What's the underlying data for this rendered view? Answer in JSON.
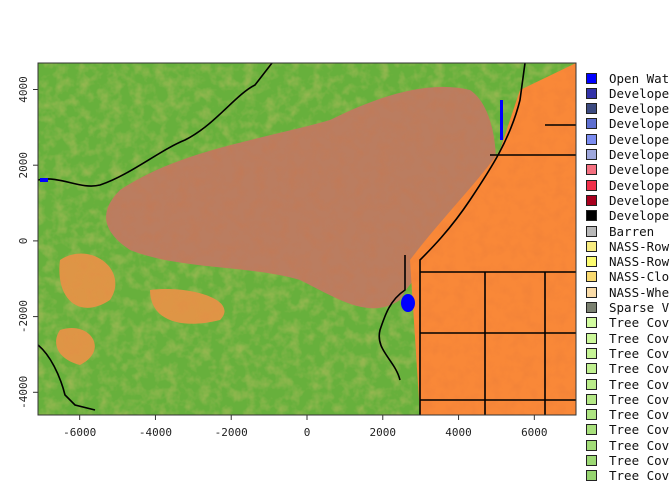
{
  "map": {
    "x_axis": {
      "ticks": [
        -6000,
        -4000,
        -2000,
        0,
        2000,
        4000,
        6000
      ],
      "range": [
        -7100,
        7100
      ]
    },
    "y_axis": {
      "ticks": [
        -4000,
        -2000,
        0,
        2000,
        4000
      ],
      "range": [
        -4600,
        4700
      ]
    },
    "colors": {
      "forest_dark": "#4f9a2e",
      "forest_light": "#9fd86a",
      "shrub": "#b97c5f",
      "cropland": "#f9883a",
      "water": "#0000ff",
      "boundary": "#000000"
    }
  },
  "legend": {
    "items": [
      {
        "label": "Open Wat",
        "color": "#0000ff"
      },
      {
        "label": "Develope",
        "color": "#3333a8"
      },
      {
        "label": "Develope",
        "color": "#3c4a80"
      },
      {
        "label": "Develope",
        "color": "#5e6fd0"
      },
      {
        "label": "Develope",
        "color": "#7b8cf0"
      },
      {
        "label": "Develope",
        "color": "#9ea7dc"
      },
      {
        "label": "Develope",
        "color": "#f47080"
      },
      {
        "label": "Develope",
        "color": "#f0304a"
      },
      {
        "label": "Develope",
        "color": "#a8001e"
      },
      {
        "label": "Develope",
        "color": "#000000"
      },
      {
        "label": "Barren",
        "color": "#b8b8b8"
      },
      {
        "label": "NASS-Row",
        "color": "#f8ec80"
      },
      {
        "label": "NASS-Row",
        "color": "#fcfc70"
      },
      {
        "label": "NASS-Clo",
        "color": "#fada70"
      },
      {
        "label": "NASS-Whe",
        "color": "#fadca8"
      },
      {
        "label": "Sparse V",
        "color": "#7a8070"
      },
      {
        "label": "Tree Cov",
        "color": "#d2fca0"
      },
      {
        "label": "Tree Cov",
        "color": "#ccf89a"
      },
      {
        "label": "Tree Cov",
        "color": "#c6f496"
      },
      {
        "label": "Tree Cov",
        "color": "#c0f090"
      },
      {
        "label": "Tree Cov",
        "color": "#baec8a"
      },
      {
        "label": "Tree Cov",
        "color": "#b4e886"
      },
      {
        "label": "Tree Cov",
        "color": "#aee482"
      },
      {
        "label": "Tree Cov",
        "color": "#a8e07c"
      },
      {
        "label": "Tree Cov",
        "color": "#a2dc78"
      },
      {
        "label": "Tree Cov",
        "color": "#9cd874"
      },
      {
        "label": "Tree Cov",
        "color": "#96d470"
      }
    ]
  }
}
